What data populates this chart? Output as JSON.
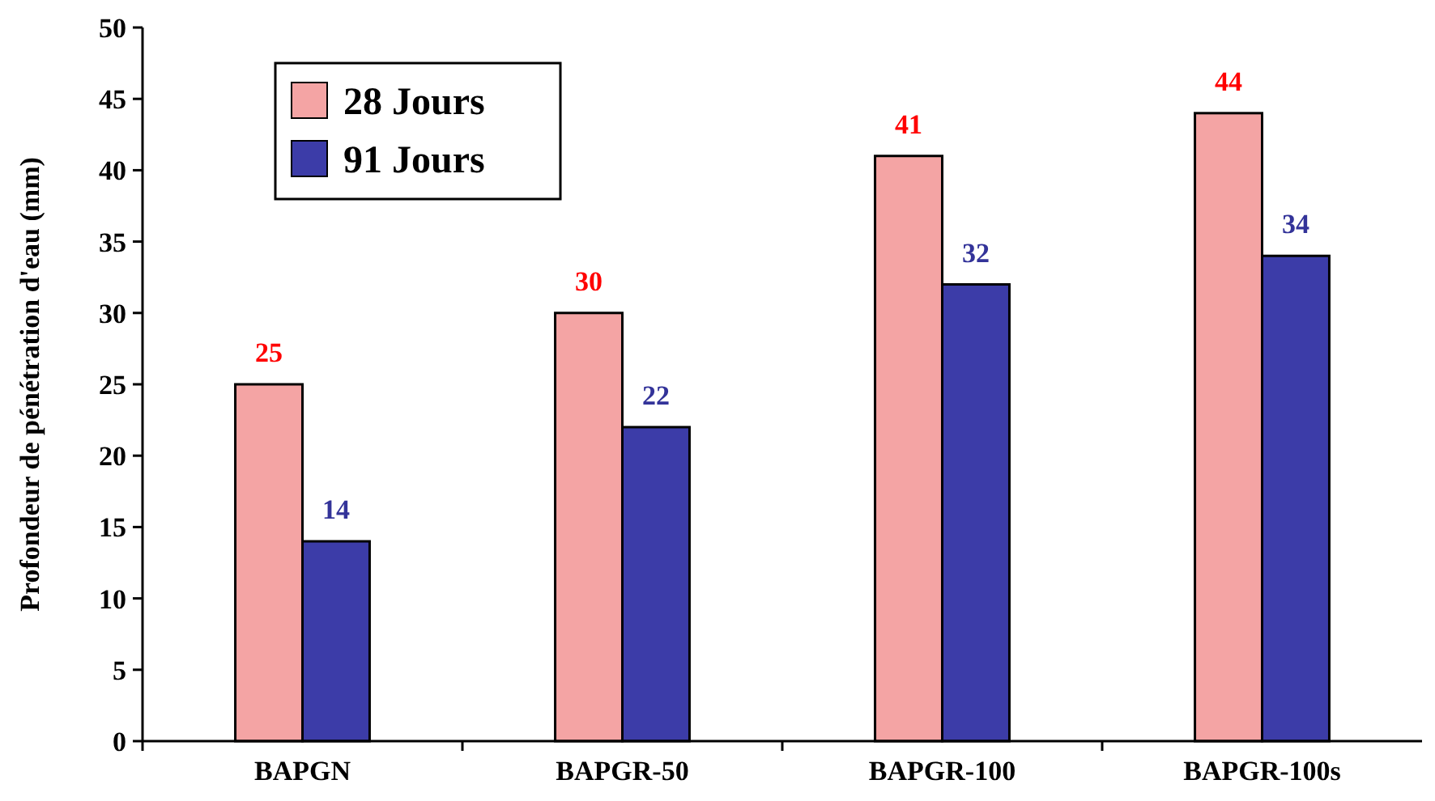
{
  "chart_data": {
    "type": "bar",
    "ylabel": "Profondeur de pénétration d'eau (mm)",
    "categories": [
      "BAPGN",
      "BAPGR-50",
      "BAPGR-100",
      "BAPGR-100s"
    ],
    "series": [
      {
        "name": "28 Jours",
        "color": "#f4a4a4",
        "values": [
          25,
          30,
          41,
          44
        ]
      },
      {
        "name": "91 Jours",
        "color": "#3c3ca8",
        "values": [
          14,
          22,
          32,
          34
        ]
      }
    ],
    "ylim": [
      0,
      50
    ],
    "yticks": [
      0,
      5,
      10,
      15,
      20,
      25,
      30,
      35,
      40,
      45,
      50
    ],
    "data_labels": true,
    "legend": "top left",
    "grid": false
  }
}
